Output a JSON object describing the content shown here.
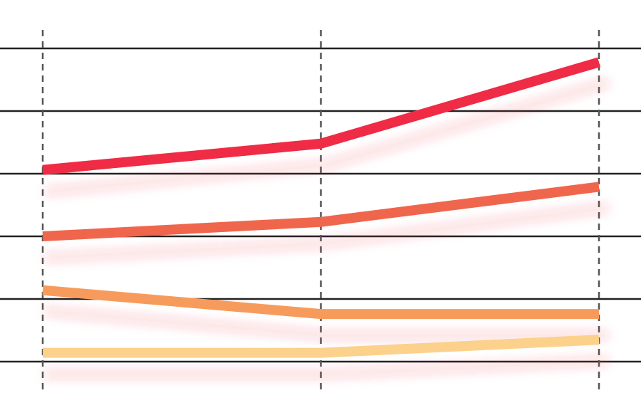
{
  "chart_data": {
    "type": "line",
    "x": [
      0,
      1,
      2
    ],
    "ylim": [
      0,
      5
    ],
    "grid": {
      "horizontal": true,
      "vertical": "dashed"
    },
    "series": [
      {
        "values": [
          3.06,
          3.48,
          4.78
        ],
        "color": "#ef2b45"
      },
      {
        "values": [
          2.0,
          2.23,
          2.79
        ],
        "color": "#ef664d"
      },
      {
        "values": [
          1.14,
          0.76,
          0.76
        ],
        "color": "#f79b5c"
      },
      {
        "values": [
          0.14,
          0.14,
          0.35
        ],
        "color": "#fbd18b"
      }
    ]
  }
}
